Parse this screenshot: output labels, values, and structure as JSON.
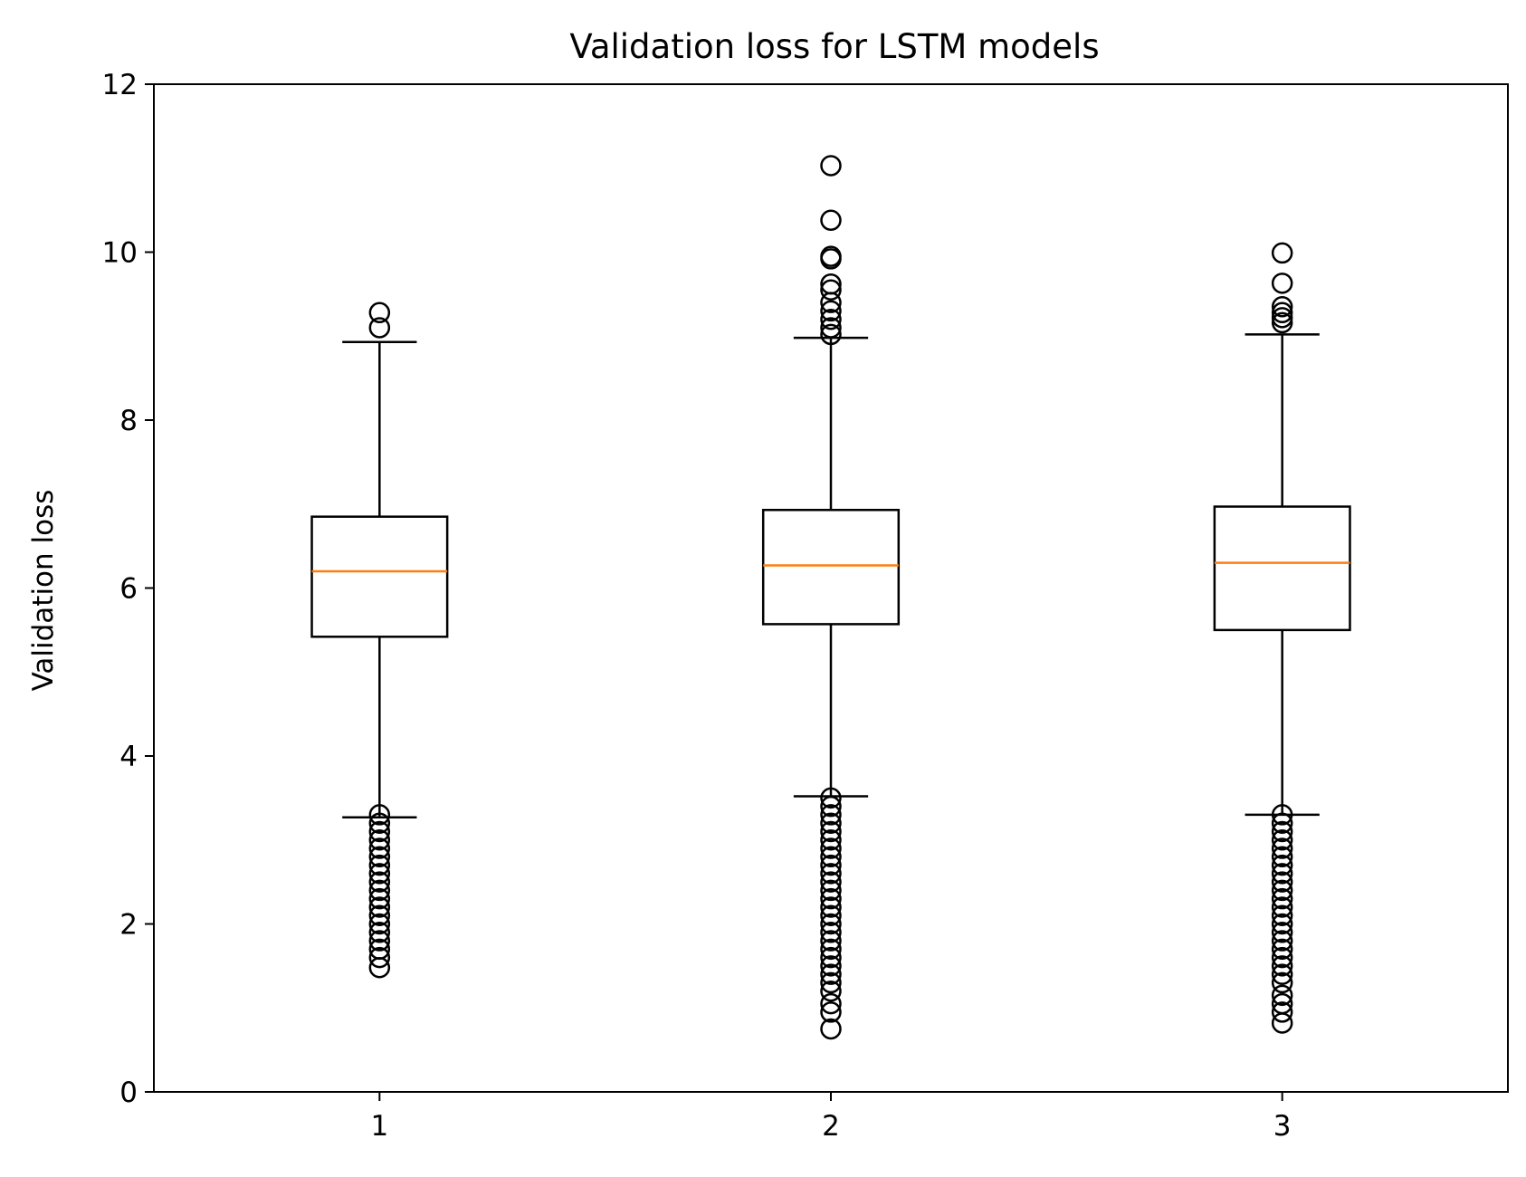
{
  "chart_data": {
    "type": "boxplot",
    "title": "Validation loss for LSTM models",
    "xlabel": "",
    "ylabel": "Validation loss",
    "categories": [
      "1",
      "2",
      "3"
    ],
    "ylim": [
      0,
      12
    ],
    "yticks": [
      0,
      2,
      4,
      6,
      8,
      10,
      12
    ],
    "grid": false,
    "colors": {
      "box": "#000000",
      "median": "#ff7f0e",
      "flier": "#000000"
    },
    "boxes": [
      {
        "label": "1",
        "whisker_low": 3.27,
        "q1": 5.42,
        "median": 6.2,
        "q3": 6.85,
        "whisker_high": 8.93,
        "fliers": [
          9.28,
          9.1,
          3.3,
          3.2,
          3.1,
          3.0,
          2.9,
          2.8,
          2.7,
          2.6,
          2.5,
          2.4,
          2.3,
          2.2,
          2.1,
          2.0,
          1.9,
          1.8,
          1.7,
          1.6,
          1.48
        ]
      },
      {
        "label": "2",
        "whisker_low": 3.52,
        "q1": 5.57,
        "median": 6.27,
        "q3": 6.93,
        "whisker_high": 8.98,
        "fliers": [
          11.03,
          10.38,
          9.95,
          9.92,
          9.62,
          9.55,
          9.4,
          9.3,
          9.2,
          9.1,
          9.02,
          3.5,
          3.4,
          3.3,
          3.2,
          3.1,
          3.0,
          2.9,
          2.8,
          2.7,
          2.6,
          2.5,
          2.4,
          2.3,
          2.2,
          2.1,
          2.0,
          1.9,
          1.8,
          1.7,
          1.6,
          1.5,
          1.4,
          1.3,
          1.2,
          1.05,
          0.95,
          0.75
        ]
      },
      {
        "label": "3",
        "whisker_low": 3.3,
        "q1": 5.5,
        "median": 6.3,
        "q3": 6.97,
        "whisker_high": 9.02,
        "fliers": [
          9.99,
          9.63,
          9.35,
          9.28,
          9.22,
          9.16,
          3.3,
          3.2,
          3.1,
          3.0,
          2.9,
          2.8,
          2.7,
          2.6,
          2.5,
          2.4,
          2.3,
          2.2,
          2.1,
          2.0,
          1.9,
          1.8,
          1.7,
          1.6,
          1.5,
          1.4,
          1.3,
          1.15,
          1.05,
          0.95,
          0.82
        ]
      }
    ]
  }
}
